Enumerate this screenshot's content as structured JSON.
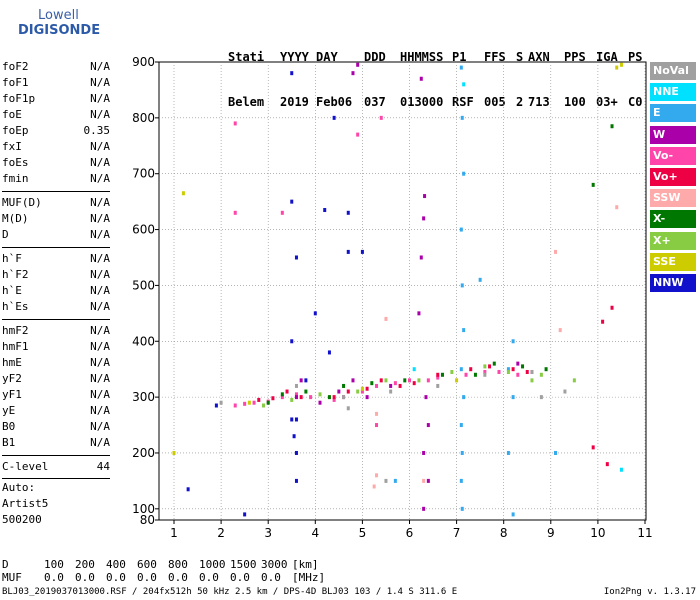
{
  "logo": {
    "line1": "Lowell",
    "line2": "DIGISONDE"
  },
  "header": {
    "labels": [
      "Stati",
      "YYYY",
      "DAY",
      "DDD",
      "HHMMSS",
      "P1",
      "FFS",
      "S",
      "AXN",
      "PPS",
      "IGA",
      "PS"
    ],
    "values": [
      "Belem",
      "2019",
      "Feb06",
      "037",
      "013000",
      "RSF",
      "005",
      "2",
      "713",
      "100",
      "03+",
      "C0"
    ]
  },
  "params": [
    {
      "name": "foF2",
      "value": "N/A"
    },
    {
      "name": "foF1",
      "value": "N/A"
    },
    {
      "name": "foF1p",
      "value": "N/A"
    },
    {
      "name": "foE",
      "value": "N/A"
    },
    {
      "name": "foEp",
      "value": "0.35"
    },
    {
      "name": "fxI",
      "value": "N/A"
    },
    {
      "name": "foEs",
      "value": "N/A"
    },
    {
      "name": "fmin",
      "value": "N/A"
    },
    {
      "name": "MUF(D)",
      "value": "N/A"
    },
    {
      "name": "M(D)",
      "value": "N/A"
    },
    {
      "name": "D",
      "value": "N/A"
    },
    {
      "name": "h`F",
      "value": "N/A"
    },
    {
      "name": "h`F2",
      "value": "N/A"
    },
    {
      "name": "h`E",
      "value": "N/A"
    },
    {
      "name": "h`Es",
      "value": "N/A"
    },
    {
      "name": "hmF2",
      "value": "N/A"
    },
    {
      "name": "hmF1",
      "value": "N/A"
    },
    {
      "name": "hmE",
      "value": "N/A"
    },
    {
      "name": "yF2",
      "value": "N/A"
    },
    {
      "name": "yF1",
      "value": "N/A"
    },
    {
      "name": "yE",
      "value": "N/A"
    },
    {
      "name": "B0",
      "value": "N/A"
    },
    {
      "name": "B1",
      "value": "N/A"
    },
    {
      "name": "C-level",
      "value": "44"
    }
  ],
  "auto": [
    "Auto:",
    "Artist5",
    "500200"
  ],
  "legend": [
    {
      "label": "NoVal",
      "color": "#a0a0a0"
    },
    {
      "label": "NNE",
      "color": "#00e0ff"
    },
    {
      "label": "E",
      "color": "#33aaee"
    },
    {
      "label": "W",
      "color": "#aa00aa"
    },
    {
      "label": "Vo-",
      "color": "#ff44aa"
    },
    {
      "label": "Vo+",
      "color": "#ee0044"
    },
    {
      "label": "SSW",
      "color": "#ffaaaa"
    },
    {
      "label": "X-",
      "color": "#007700"
    },
    {
      "label": "X+",
      "color": "#88cc44"
    },
    {
      "label": "SSE",
      "color": "#cccc00"
    },
    {
      "label": "NNW",
      "color": "#1111cc"
    }
  ],
  "dtable": {
    "d_label": "D",
    "d_values": [
      "100",
      "200",
      "400",
      "600",
      "800",
      "1000",
      "1500",
      "3000"
    ],
    "d_unit": "[km]",
    "muf_label": "MUF",
    "muf_values": [
      "0.0",
      "0.0",
      "0.0",
      "0.0",
      "0.0",
      "0.0",
      "0.0",
      "0.0"
    ],
    "muf_unit": "[MHz]"
  },
  "footer": "BLJ03_2019037013000.RSF / 204fx512h 50 kHz 2.5 km / DPS-4D BLJ03 103 / 1.4 S 311.6 E",
  "version": "Ion2Png v. 1.3.17",
  "chart_data": {
    "type": "scatter",
    "xlim": [
      0.8,
      11.0
    ],
    "ylim": [
      80,
      900
    ],
    "xticks": [
      1,
      2,
      3,
      4,
      5,
      6,
      7,
      8,
      9,
      10,
      11
    ],
    "yticks": [
      80,
      100,
      200,
      300,
      400,
      500,
      600,
      700,
      800,
      900
    ],
    "ytick_labels": [
      100,
      200,
      300,
      400,
      500,
      600,
      700,
      800,
      900
    ],
    "ytick_label_80": "80",
    "grid": "dotted",
    "series": [
      {
        "name": "Vo-",
        "color": "#ff44aa",
        "points": [
          [
            2.5,
            288
          ],
          [
            2.7,
            290
          ],
          [
            3.0,
            292
          ],
          [
            3.3,
            300
          ],
          [
            3.6,
            305
          ],
          [
            3.9,
            300
          ],
          [
            4.4,
            295
          ],
          [
            4.6,
            300
          ],
          [
            5.0,
            310
          ],
          [
            5.3,
            320
          ],
          [
            5.7,
            325
          ],
          [
            6.0,
            330
          ],
          [
            6.4,
            330
          ],
          [
            6.6,
            335
          ],
          [
            7.2,
            340
          ],
          [
            7.6,
            345
          ],
          [
            7.9,
            345
          ],
          [
            8.3,
            340
          ],
          [
            8.6,
            345
          ],
          [
            5.4,
            800
          ],
          [
            4.9,
            770
          ],
          [
            2.3,
            790
          ],
          [
            2.3,
            630
          ],
          [
            3.3,
            630
          ],
          [
            5.3,
            250
          ],
          [
            2.3,
            285
          ]
        ]
      },
      {
        "name": "Vo+",
        "color": "#ee0044",
        "points": [
          [
            2.8,
            295
          ],
          [
            3.1,
            298
          ],
          [
            3.4,
            310
          ],
          [
            3.7,
            300
          ],
          [
            4.4,
            300
          ],
          [
            4.7,
            310
          ],
          [
            5.1,
            315
          ],
          [
            5.4,
            330
          ],
          [
            5.8,
            320
          ],
          [
            6.1,
            325
          ],
          [
            6.6,
            340
          ],
          [
            7.3,
            350
          ],
          [
            7.7,
            355
          ],
          [
            8.2,
            350
          ],
          [
            8.5,
            345
          ],
          [
            10.1,
            435
          ],
          [
            10.3,
            460
          ],
          [
            10.2,
            180
          ],
          [
            9.9,
            210
          ]
        ]
      },
      {
        "name": "W",
        "color": "#aa00aa",
        "points": [
          [
            3.6,
            300
          ],
          [
            3.7,
            330
          ],
          [
            4.1,
            290
          ],
          [
            4.5,
            310
          ],
          [
            4.8,
            330
          ],
          [
            5.1,
            300
          ],
          [
            5.6,
            320
          ],
          [
            6.2,
            450
          ],
          [
            6.25,
            550
          ],
          [
            6.3,
            620
          ],
          [
            6.32,
            660
          ],
          [
            6.35,
            300
          ],
          [
            6.3,
            200
          ],
          [
            6.3,
            100
          ],
          [
            6.25,
            870
          ],
          [
            4.9,
            895
          ],
          [
            4.8,
            880
          ],
          [
            6.4,
            250
          ],
          [
            6.4,
            150
          ],
          [
            8.3,
            360
          ]
        ]
      },
      {
        "name": "E",
        "color": "#33aaee",
        "points": [
          [
            7.1,
            890
          ],
          [
            7.12,
            800
          ],
          [
            7.15,
            700
          ],
          [
            7.1,
            600
          ],
          [
            7.12,
            500
          ],
          [
            7.15,
            420
          ],
          [
            7.1,
            350
          ],
          [
            7.15,
            300
          ],
          [
            7.1,
            250
          ],
          [
            7.12,
            200
          ],
          [
            7.1,
            150
          ],
          [
            7.12,
            100
          ],
          [
            7.5,
            510
          ],
          [
            8.1,
            350
          ],
          [
            8.2,
            400
          ],
          [
            8.2,
            300
          ],
          [
            8.1,
            200
          ],
          [
            8.2,
            90
          ],
          [
            5.7,
            150
          ],
          [
            9.1,
            200
          ]
        ]
      },
      {
        "name": "NNE",
        "color": "#00e0ff",
        "points": [
          [
            7.15,
            860
          ],
          [
            10.5,
            170
          ],
          [
            6.1,
            350
          ]
        ]
      },
      {
        "name": "NNW",
        "color": "#1111cc",
        "points": [
          [
            3.5,
            880
          ],
          [
            3.6,
            200
          ],
          [
            3.55,
            230
          ],
          [
            3.6,
            150
          ],
          [
            3.5,
            260
          ],
          [
            3.5,
            400
          ],
          [
            3.5,
            650
          ],
          [
            3.6,
            550
          ],
          [
            4.0,
            450
          ],
          [
            4.2,
            635
          ],
          [
            4.7,
            630
          ],
          [
            5.0,
            560
          ],
          [
            4.7,
            560
          ],
          [
            1.3,
            135
          ],
          [
            1.9,
            285
          ],
          [
            4.3,
            380
          ],
          [
            3.6,
            260
          ],
          [
            4.4,
            800
          ],
          [
            3.8,
            330
          ],
          [
            2.5,
            90
          ]
        ]
      },
      {
        "name": "X-",
        "color": "#007700",
        "points": [
          [
            3.0,
            290
          ],
          [
            3.3,
            305
          ],
          [
            3.8,
            310
          ],
          [
            4.6,
            320
          ],
          [
            5.2,
            325
          ],
          [
            5.9,
            330
          ],
          [
            6.7,
            340
          ],
          [
            7.4,
            340
          ],
          [
            7.8,
            360
          ],
          [
            8.4,
            355
          ],
          [
            8.9,
            350
          ],
          [
            9.9,
            680
          ],
          [
            10.3,
            785
          ],
          [
            4.3,
            300
          ]
        ]
      },
      {
        "name": "X+",
        "color": "#88cc44",
        "points": [
          [
            2.9,
            285
          ],
          [
            3.5,
            295
          ],
          [
            4.1,
            305
          ],
          [
            4.9,
            310
          ],
          [
            5.5,
            330
          ],
          [
            6.2,
            330
          ],
          [
            6.9,
            345
          ],
          [
            7.6,
            355
          ],
          [
            8.1,
            345
          ],
          [
            8.8,
            340
          ],
          [
            8.6,
            330
          ],
          [
            9.5,
            330
          ]
        ]
      },
      {
        "name": "SSW",
        "color": "#ffaaaa",
        "points": [
          [
            5.3,
            270
          ],
          [
            5.3,
            160
          ],
          [
            5.25,
            140
          ],
          [
            6.3,
            150
          ],
          [
            9.1,
            560
          ],
          [
            9.2,
            420
          ],
          [
            5.5,
            440
          ],
          [
            10.4,
            640
          ]
        ]
      },
      {
        "name": "SSE",
        "color": "#cccc00",
        "points": [
          [
            1.2,
            665
          ],
          [
            10.5,
            895
          ],
          [
            10.4,
            890
          ],
          [
            1.0,
            200
          ],
          [
            2.6,
            290
          ],
          [
            5.0,
            315
          ],
          [
            7.0,
            330
          ]
        ]
      },
      {
        "name": "NoVal",
        "color": "#a0a0a0",
        "points": [
          [
            2.0,
            290
          ],
          [
            3.6,
            320
          ],
          [
            4.6,
            300
          ],
          [
            5.6,
            310
          ],
          [
            6.6,
            320
          ],
          [
            7.6,
            340
          ],
          [
            8.6,
            345
          ],
          [
            8.8,
            300
          ],
          [
            9.3,
            310
          ],
          [
            5.5,
            150
          ],
          [
            4.7,
            280
          ]
        ]
      }
    ]
  }
}
